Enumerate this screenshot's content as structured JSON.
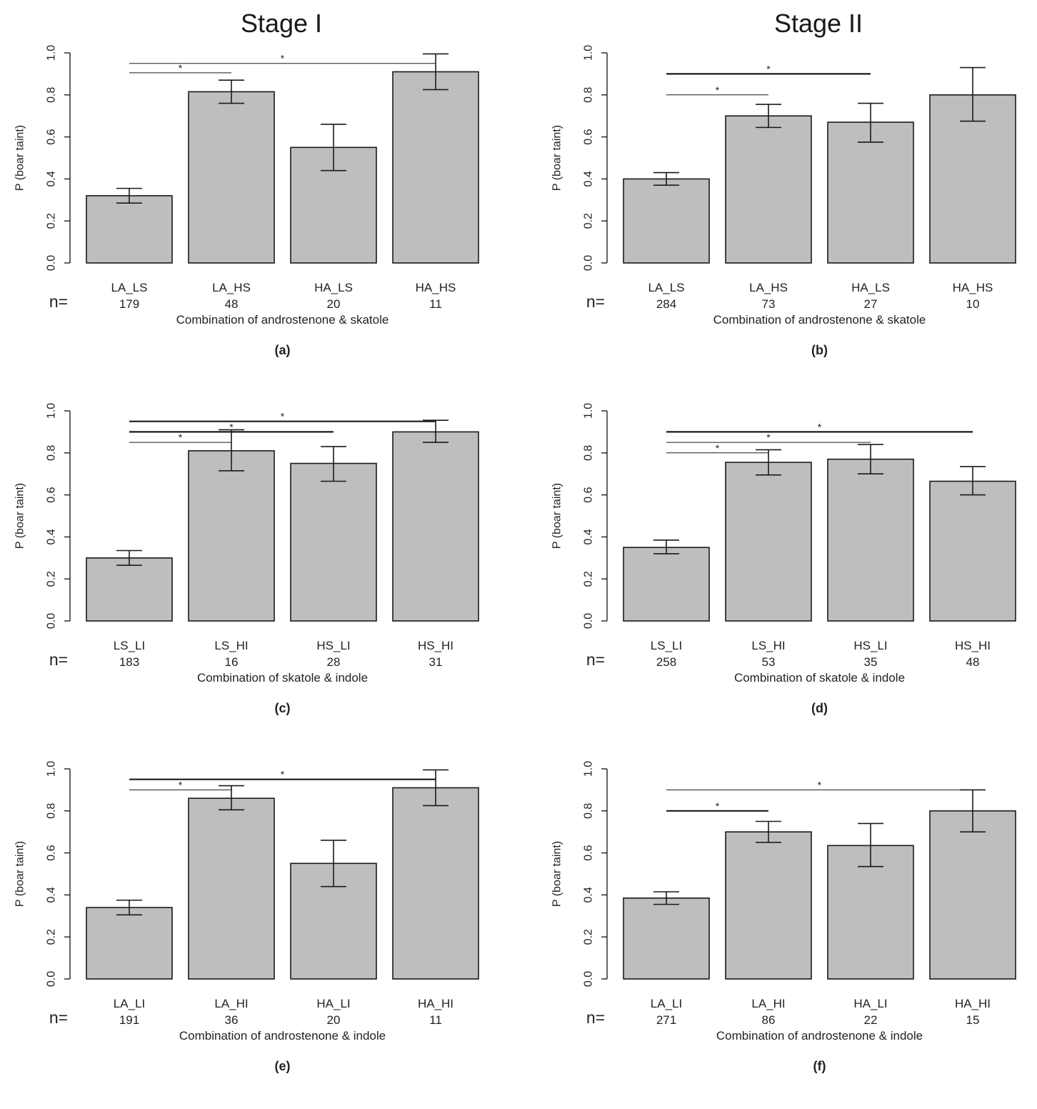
{
  "stage_titles": [
    "Stage I",
    "Stage II"
  ],
  "chart_data": [
    {
      "type": "bar",
      "panel": "(a)",
      "stage": "Stage I",
      "ylabel": "P (boar taint)",
      "xlabel": "Combination of androstenone & skatole",
      "ylim": [
        0,
        1
      ],
      "yticks": [
        "0.0",
        "0.2",
        "0.4",
        "0.6",
        "0.8",
        "1.0"
      ],
      "n_label": "n=",
      "categories": [
        "LA_LS",
        "LA_HS",
        "HA_LS",
        "HA_HS"
      ],
      "n": [
        "179",
        "48",
        "20",
        "11"
      ],
      "values": [
        0.32,
        0.815,
        0.55,
        0.91
      ],
      "err_low": [
        0.285,
        0.76,
        0.44,
        0.825
      ],
      "err_high": [
        0.355,
        0.87,
        0.66,
        0.995
      ],
      "comparisons": [
        {
          "from": 0,
          "to": 1,
          "y": 0.905,
          "label": "*",
          "weight": "thin"
        },
        {
          "from": 0,
          "to": 3,
          "y": 0.95,
          "label": "*",
          "weight": "thin"
        }
      ]
    },
    {
      "type": "bar",
      "panel": "(b)",
      "stage": "Stage II",
      "ylabel": "P (boar taint)",
      "xlabel": "Combination of androstenone & skatole",
      "ylim": [
        0,
        1
      ],
      "yticks": [
        "0.0",
        "0.2",
        "0.4",
        "0.6",
        "0.8",
        "1.0"
      ],
      "n_label": "n=",
      "categories": [
        "LA_LS",
        "LA_HS",
        "HA_LS",
        "HA_HS"
      ],
      "n": [
        "284",
        "73",
        "27",
        "10"
      ],
      "values": [
        0.4,
        0.7,
        0.67,
        0.8
      ],
      "err_low": [
        0.37,
        0.645,
        0.575,
        0.675
      ],
      "err_high": [
        0.43,
        0.755,
        0.76,
        0.93
      ],
      "comparisons": [
        {
          "from": 0,
          "to": 2,
          "y": 0.9,
          "label": "*",
          "weight": "thick"
        },
        {
          "from": 0,
          "to": 1,
          "y": 0.8,
          "label": "*",
          "weight": "thin"
        }
      ]
    },
    {
      "type": "bar",
      "panel": "(c)",
      "stage": "Stage I",
      "ylabel": "P (boar taint)",
      "xlabel": "Combination of skatole & indole",
      "ylim": [
        0,
        1
      ],
      "yticks": [
        "0.0",
        "0.2",
        "0.4",
        "0.6",
        "0.8",
        "1.0"
      ],
      "n_label": "n=",
      "categories": [
        "LS_LI",
        "LS_HI",
        "HS_LI",
        "HS_HI"
      ],
      "n": [
        "183",
        "16",
        "28",
        "31"
      ],
      "values": [
        0.3,
        0.81,
        0.75,
        0.9
      ],
      "err_low": [
        0.265,
        0.715,
        0.665,
        0.85
      ],
      "err_high": [
        0.335,
        0.91,
        0.83,
        0.955
      ],
      "comparisons": [
        {
          "from": 0,
          "to": 3,
          "y": 0.95,
          "label": "*",
          "weight": "thick"
        },
        {
          "from": 0,
          "to": 2,
          "y": 0.9,
          "label": "*",
          "weight": "thick"
        },
        {
          "from": 0,
          "to": 1,
          "y": 0.85,
          "label": "*",
          "weight": "thin"
        }
      ]
    },
    {
      "type": "bar",
      "panel": "(d)",
      "stage": "Stage II",
      "ylabel": "P (boar taint)",
      "xlabel": "Combination of skatole & indole",
      "ylim": [
        0,
        1
      ],
      "yticks": [
        "0.0",
        "0.2",
        "0.4",
        "0.6",
        "0.8",
        "1.0"
      ],
      "n_label": "n=",
      "categories": [
        "LS_LI",
        "LS_HI",
        "HS_LI",
        "HS_HI"
      ],
      "n": [
        "258",
        "53",
        "35",
        "48"
      ],
      "values": [
        0.35,
        0.755,
        0.77,
        0.665
      ],
      "err_low": [
        0.32,
        0.695,
        0.7,
        0.6
      ],
      "err_high": [
        0.385,
        0.815,
        0.84,
        0.735
      ],
      "comparisons": [
        {
          "from": 0,
          "to": 3,
          "y": 0.9,
          "label": "*",
          "weight": "thick"
        },
        {
          "from": 0,
          "to": 2,
          "y": 0.85,
          "label": "*",
          "weight": "thin"
        },
        {
          "from": 0,
          "to": 1,
          "y": 0.8,
          "label": "*",
          "weight": "thin"
        }
      ]
    },
    {
      "type": "bar",
      "panel": "(e)",
      "stage": "Stage I",
      "ylabel": "P (boar taint)",
      "xlabel": "Combination of androstenone & indole",
      "ylim": [
        0,
        1
      ],
      "yticks": [
        "0.0",
        "0.2",
        "0.4",
        "0.6",
        "0.8",
        "1.0"
      ],
      "n_label": "n=",
      "categories": [
        "LA_LI",
        "LA_HI",
        "HA_LI",
        "HA_HI"
      ],
      "n": [
        "191",
        "36",
        "20",
        "11"
      ],
      "values": [
        0.34,
        0.86,
        0.55,
        0.91
      ],
      "err_low": [
        0.305,
        0.805,
        0.44,
        0.825
      ],
      "err_high": [
        0.375,
        0.92,
        0.66,
        0.995
      ],
      "comparisons": [
        {
          "from": 0,
          "to": 3,
          "y": 0.95,
          "label": "*",
          "weight": "thick"
        },
        {
          "from": 0,
          "to": 1,
          "y": 0.9,
          "label": "*",
          "weight": "thin"
        }
      ]
    },
    {
      "type": "bar",
      "panel": "(f)",
      "stage": "Stage II",
      "ylabel": "P (boar taint)",
      "xlabel": "Combination of androstenone & indole",
      "ylim": [
        0,
        1
      ],
      "yticks": [
        "0.0",
        "0.2",
        "0.4",
        "0.6",
        "0.8",
        "1.0"
      ],
      "n_label": "n=",
      "categories": [
        "LA_LI",
        "LA_HI",
        "HA_LI",
        "HA_HI"
      ],
      "n": [
        "271",
        "86",
        "22",
        "15"
      ],
      "values": [
        0.385,
        0.7,
        0.635,
        0.8
      ],
      "err_low": [
        0.355,
        0.65,
        0.535,
        0.7
      ],
      "err_high": [
        0.415,
        0.75,
        0.74,
        0.9
      ],
      "comparisons": [
        {
          "from": 0,
          "to": 3,
          "y": 0.9,
          "label": "*",
          "weight": "thin"
        },
        {
          "from": 0,
          "to": 1,
          "y": 0.8,
          "label": "*",
          "weight": "thick"
        }
      ]
    }
  ]
}
